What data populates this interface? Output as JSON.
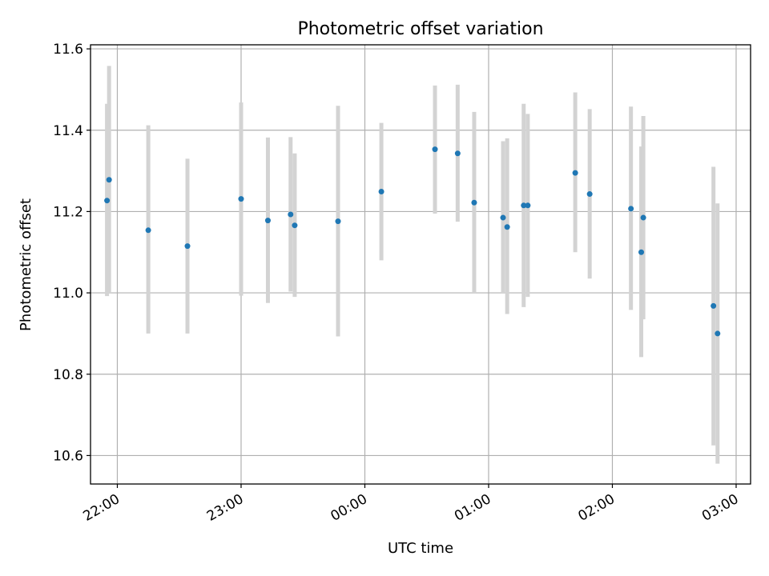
{
  "chart_data": {
    "type": "scatter",
    "title": "Photometric offset variation",
    "xlabel": "UTC time",
    "ylabel": "Photometric offset",
    "xlim": [
      "21:47",
      "03:07"
    ],
    "ylim": [
      10.53,
      11.61
    ],
    "grid": true,
    "x_ticks": [
      "22:00",
      "23:00",
      "00:00",
      "01:00",
      "02:00",
      "03:00"
    ],
    "y_ticks": [
      "10.6",
      "10.8",
      "11.0",
      "11.2",
      "11.4",
      "11.6"
    ],
    "point_color": "#1f77b4",
    "errorbar_color": "#d3d3d3",
    "points": [
      {
        "x": "21:55",
        "y": 11.227,
        "yerr_low": 10.992,
        "yerr_high": 11.465
      },
      {
        "x": "21:56",
        "y": 11.278,
        "yerr_low": 11.0,
        "yerr_high": 11.558
      },
      {
        "x": "22:15",
        "y": 11.154,
        "yerr_low": 10.9,
        "yerr_high": 11.412
      },
      {
        "x": "22:34",
        "y": 11.115,
        "yerr_low": 10.9,
        "yerr_high": 11.33
      },
      {
        "x": "23:00",
        "y": 11.231,
        "yerr_low": 10.993,
        "yerr_high": 11.468
      },
      {
        "x": "23:13",
        "y": 11.178,
        "yerr_low": 10.975,
        "yerr_high": 11.382
      },
      {
        "x": "23:24",
        "y": 11.193,
        "yerr_low": 11.003,
        "yerr_high": 11.383
      },
      {
        "x": "23:26",
        "y": 11.166,
        "yerr_low": 10.99,
        "yerr_high": 11.343
      },
      {
        "x": "23:47",
        "y": 11.176,
        "yerr_low": 10.893,
        "yerr_high": 11.46
      },
      {
        "x": "00:08",
        "y": 11.249,
        "yerr_low": 11.08,
        "yerr_high": 11.418
      },
      {
        "x": "00:34",
        "y": 11.353,
        "yerr_low": 11.195,
        "yerr_high": 11.51
      },
      {
        "x": "00:45",
        "y": 11.343,
        "yerr_low": 11.175,
        "yerr_high": 11.512
      },
      {
        "x": "00:53",
        "y": 11.222,
        "yerr_low": 11.0,
        "yerr_high": 11.445
      },
      {
        "x": "01:07",
        "y": 11.185,
        "yerr_low": 11.0,
        "yerr_high": 11.373
      },
      {
        "x": "01:09",
        "y": 11.162,
        "yerr_low": 10.948,
        "yerr_high": 11.38
      },
      {
        "x": "01:17",
        "y": 11.215,
        "yerr_low": 10.965,
        "yerr_high": 11.465
      },
      {
        "x": "01:19",
        "y": 11.215,
        "yerr_low": 10.99,
        "yerr_high": 11.44
      },
      {
        "x": "01:42",
        "y": 11.295,
        "yerr_low": 11.1,
        "yerr_high": 11.493
      },
      {
        "x": "01:49",
        "y": 11.243,
        "yerr_low": 11.035,
        "yerr_high": 11.452
      },
      {
        "x": "02:09",
        "y": 11.207,
        "yerr_low": 10.958,
        "yerr_high": 11.458
      },
      {
        "x": "02:14",
        "y": 11.1,
        "yerr_low": 10.842,
        "yerr_high": 11.36
      },
      {
        "x": "02:15",
        "y": 11.185,
        "yerr_low": 10.935,
        "yerr_high": 11.435
      },
      {
        "x": "02:49",
        "y": 10.968,
        "yerr_low": 10.625,
        "yerr_high": 11.31
      },
      {
        "x": "02:51",
        "y": 10.9,
        "yerr_low": 10.58,
        "yerr_high": 11.22
      }
    ]
  }
}
